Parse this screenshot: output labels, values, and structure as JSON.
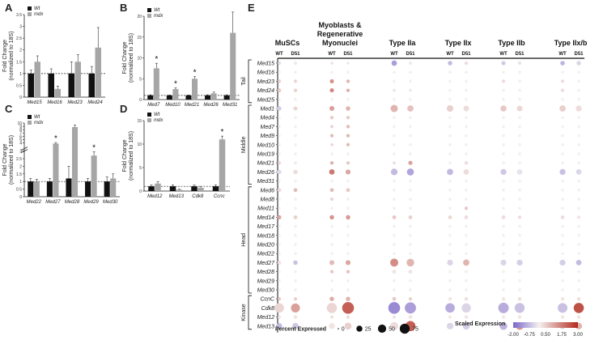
{
  "panel_letters": [
    "A",
    "B",
    "C",
    "D",
    "E"
  ],
  "bar_legend": {
    "wt": "Wt",
    "mdx": "mdx"
  },
  "colors": {
    "wt": "#111111",
    "mdx": "#a6a6a6",
    "neg": "#7b68c9",
    "mid": "#f4f0f0",
    "pos": "#b22a1c"
  },
  "chart_data": [
    {
      "panel": "A",
      "type": "bar",
      "ylabel": "Fold Change\n(normalized to 18S)",
      "ylim": [
        0,
        3.5
      ],
      "yticks": [
        0,
        0.5,
        1,
        1.5,
        2,
        2.5,
        3,
        3.5
      ],
      "categories": [
        "Med15",
        "Med16",
        "Med23",
        "Med24"
      ],
      "series": [
        {
          "name": "Wt",
          "values": [
            1.0,
            1.0,
            1.0,
            1.0
          ],
          "err": [
            0.15,
            0.2,
            0.5,
            0.3
          ]
        },
        {
          "name": "mdx",
          "values": [
            1.5,
            0.35,
            1.5,
            2.1
          ],
          "err": [
            0.25,
            0.12,
            0.3,
            0.85
          ]
        }
      ],
      "significant": []
    },
    {
      "panel": "B",
      "type": "bar",
      "ylabel": "Fold Change\n(normalized to 18S)",
      "ylim": [
        0,
        20
      ],
      "yticks": [
        0,
        5,
        10,
        15,
        20
      ],
      "categories": [
        "Med7",
        "Med10",
        "Med21",
        "Med26",
        "Med31"
      ],
      "series": [
        {
          "name": "Wt",
          "values": [
            1.0,
            1.0,
            1.0,
            1.0,
            1.0
          ],
          "err": [
            0.15,
            0.1,
            0.1,
            0.15,
            0.15
          ]
        },
        {
          "name": "mdx",
          "values": [
            7.5,
            2.5,
            5.0,
            1.5,
            16.0
          ],
          "err": [
            1.2,
            0.3,
            0.5,
            0.3,
            5.0
          ]
        }
      ],
      "significant": [
        0,
        1,
        2
      ]
    },
    {
      "panel": "C",
      "type": "bar",
      "ylabel": "Fold Change\n(normalized to 18S)",
      "ylim": [
        0,
        20
      ],
      "yticks": [
        0,
        0.5,
        1,
        1.5,
        2,
        2.5,
        3,
        4,
        5,
        6,
        7,
        8,
        9,
        10
      ],
      "y_break": true,
      "categories": [
        "Med22",
        "Med27",
        "Med28",
        "Med29",
        "Med30"
      ],
      "series": [
        {
          "name": "Wt",
          "values": [
            1.0,
            1.0,
            1.2,
            1.0,
            1.0
          ],
          "err": [
            0.2,
            0.2,
            0.8,
            0.2,
            0.3
          ]
        },
        {
          "name": "mdx",
          "values": [
            1.0,
            3.8,
            8.8,
            2.7,
            1.2
          ],
          "err": [
            0.15,
            0.3,
            0.6,
            0.25,
            0.3
          ]
        }
      ],
      "significant": [
        1,
        3
      ]
    },
    {
      "panel": "D",
      "type": "bar",
      "ylabel": "Fold Change\n(normalized to 18S)",
      "ylim": [
        0,
        15
      ],
      "yticks": [
        0,
        5,
        10,
        15
      ],
      "categories": [
        "Med12",
        "Med13",
        "Cdk8",
        "Ccnc"
      ],
      "series": [
        {
          "name": "Wt",
          "values": [
            1.0,
            1.0,
            1.0,
            1.0
          ],
          "err": [
            0.3,
            0.3,
            0.3,
            0.3
          ]
        },
        {
          "name": "mdx",
          "values": [
            1.6,
            0.3,
            0.7,
            11.0
          ],
          "err": [
            0.4,
            0.1,
            0.3,
            0.7
          ]
        }
      ],
      "significant": [
        3
      ]
    },
    {
      "panel": "E",
      "type": "scatter",
      "cell_types": [
        "MuSCs",
        "Myoblasts &\nRegenerative\nMyonuclei",
        "Type IIa",
        "Type IIx",
        "Type IIb",
        "Type IIx/b"
      ],
      "conditions": [
        "WT",
        "D51"
      ],
      "genes": [
        "Med15",
        "Med16",
        "Med23",
        "Med24",
        "Med25",
        "Med1",
        "Med4",
        "Med7",
        "Med9",
        "Med10",
        "Med19",
        "Med21",
        "Med26",
        "Med31",
        "Med6",
        "Med8",
        "Med11",
        "Med14",
        "Med17",
        "Med18",
        "Med20",
        "Med22",
        "Med27",
        "Med28",
        "Med29",
        "Med30",
        "CcnC",
        "Cdk8",
        "Med12",
        "Med13"
      ],
      "modules": [
        {
          "name": "Tail",
          "start": 0,
          "end": 4
        },
        {
          "name": "Middle",
          "start": 5,
          "end": 13
        },
        {
          "name": "Head",
          "start": 14,
          "end": 25
        },
        {
          "name": "Kinase",
          "start": 26,
          "end": 29
        }
      ],
      "percent": [
        [
          3,
          3,
          2,
          2,
          10,
          3,
          6,
          3,
          5,
          3,
          6,
          6
        ],
        [
          2,
          2,
          2,
          2,
          2,
          2,
          2,
          2,
          2,
          2,
          2,
          2
        ],
        [
          3,
          3,
          5,
          3,
          2,
          2,
          2,
          2,
          3,
          2,
          3,
          2
        ],
        [
          4,
          3,
          5,
          3,
          2,
          2,
          2,
          2,
          2,
          2,
          3,
          2
        ],
        [
          2,
          2,
          2,
          2,
          2,
          2,
          2,
          2,
          2,
          2,
          2,
          2
        ],
        [
          6,
          5,
          8,
          6,
          20,
          14,
          15,
          11,
          13,
          11,
          14,
          12
        ],
        [
          2,
          2,
          3,
          3,
          2,
          2,
          2,
          2,
          2,
          2,
          2,
          2
        ],
        [
          2,
          2,
          2,
          3,
          2,
          2,
          2,
          2,
          2,
          2,
          2,
          2
        ],
        [
          2,
          2,
          3,
          3,
          2,
          2,
          2,
          2,
          2,
          2,
          2,
          2
        ],
        [
          2,
          2,
          2,
          3,
          2,
          2,
          2,
          2,
          2,
          2,
          2,
          2
        ],
        [
          2,
          2,
          2,
          2,
          2,
          2,
          2,
          2,
          2,
          2,
          2,
          2
        ],
        [
          3,
          2,
          3,
          3,
          2,
          5,
          2,
          3,
          2,
          2,
          2,
          2
        ],
        [
          6,
          6,
          10,
          8,
          16,
          18,
          14,
          10,
          12,
          10,
          12,
          10
        ],
        [
          2,
          2,
          2,
          2,
          2,
          2,
          2,
          2,
          2,
          2,
          2,
          2
        ],
        [
          4,
          4,
          4,
          4,
          2,
          2,
          2,
          2,
          2,
          2,
          2,
          2
        ],
        [
          2,
          2,
          3,
          2,
          2,
          2,
          2,
          2,
          2,
          2,
          2,
          2
        ],
        [
          2,
          2,
          2,
          2,
          2,
          2,
          2,
          3,
          2,
          2,
          2,
          2
        ],
        [
          5,
          4,
          6,
          6,
          4,
          4,
          4,
          4,
          4,
          3,
          4,
          3
        ],
        [
          2,
          2,
          2,
          2,
          2,
          2,
          2,
          2,
          2,
          2,
          2,
          2
        ],
        [
          2,
          2,
          2,
          2,
          2,
          2,
          2,
          2,
          2,
          2,
          2,
          2
        ],
        [
          2,
          2,
          2,
          2,
          2,
          2,
          2,
          2,
          2,
          2,
          2,
          2
        ],
        [
          2,
          2,
          2,
          2,
          2,
          2,
          2,
          2,
          2,
          2,
          2,
          2
        ],
        [
          4,
          6,
          8,
          8,
          25,
          22,
          12,
          14,
          12,
          12,
          12,
          10
        ],
        [
          2,
          2,
          3,
          3,
          4,
          4,
          2,
          3,
          2,
          2,
          2,
          2
        ],
        [
          2,
          2,
          2,
          2,
          2,
          2,
          2,
          2,
          2,
          2,
          2,
          2
        ],
        [
          2,
          2,
          2,
          2,
          2,
          2,
          2,
          2,
          2,
          2,
          2,
          2
        ],
        [
          3,
          3,
          6,
          6,
          4,
          3,
          3,
          3,
          3,
          3,
          3,
          3
        ],
        [
          36,
          32,
          42,
          58,
          58,
          52,
          36,
          34,
          45,
          40,
          38,
          42
        ],
        [
          3,
          3,
          2,
          3,
          3,
          4,
          2,
          3,
          2,
          3,
          3,
          3
        ],
        [
          12,
          14,
          12,
          18,
          25,
          42,
          16,
          18,
          22,
          22,
          12,
          16
        ]
      ],
      "expression": [
        [
          -0.3,
          -0.1,
          0.2,
          0.1,
          -1.2,
          0.1,
          -0.8,
          0.3,
          -0.6,
          -0.2,
          -0.9,
          -0.4
        ],
        [
          0,
          0,
          0,
          0,
          0,
          0,
          0,
          0,
          0,
          0,
          0,
          0
        ],
        [
          0.5,
          0.4,
          1.4,
          0.9,
          0,
          0,
          0,
          0,
          0.3,
          0,
          0.3,
          0
        ],
        [
          0.6,
          0.5,
          1.6,
          1.0,
          0.2,
          0.1,
          0,
          0,
          0,
          0,
          0.3,
          0
        ],
        [
          0,
          0,
          0,
          0,
          0,
          0,
          0,
          0,
          0,
          0,
          0,
          0
        ],
        [
          -0.5,
          0.4,
          1.2,
          0.9,
          0.9,
          0.7,
          0.5,
          0.3,
          0.6,
          0.4,
          0.5,
          0.3
        ],
        [
          0,
          0,
          0.6,
          0.6,
          0,
          0,
          0,
          0,
          0,
          0,
          0,
          0
        ],
        [
          0,
          0,
          0.5,
          0.8,
          0,
          0,
          0,
          0,
          0,
          0,
          0,
          0
        ],
        [
          0,
          0,
          0.8,
          0.9,
          0,
          0,
          0,
          0,
          0,
          0,
          0,
          0
        ],
        [
          0,
          0,
          0.4,
          0.8,
          0,
          0,
          0,
          0,
          0,
          0,
          0,
          0
        ],
        [
          0,
          0,
          0,
          0,
          0,
          0,
          0,
          0,
          0,
          0,
          0,
          0
        ],
        [
          0.4,
          0.1,
          1.0,
          0.6,
          0.3,
          1.2,
          0,
          0.3,
          0,
          0,
          0,
          0
        ],
        [
          -0.3,
          0.3,
          1.8,
          1.1,
          -0.8,
          -1.1,
          -0.8,
          0.3,
          -0.6,
          -0.2,
          -0.7,
          -0.4
        ],
        [
          0,
          0,
          0,
          0,
          0,
          0,
          0,
          0,
          0,
          0,
          0,
          0
        ],
        [
          0.3,
          0.8,
          0.8,
          0.6,
          0,
          0,
          0,
          0,
          0,
          0,
          0,
          0
        ],
        [
          0,
          0,
          0.4,
          0,
          0,
          0,
          0,
          0,
          0,
          0,
          0,
          0
        ],
        [
          0,
          0,
          0,
          0,
          0,
          0,
          0,
          0.6,
          0,
          0,
          0,
          0
        ],
        [
          1.1,
          0.5,
          1.4,
          1.3,
          0.6,
          0.5,
          0.4,
          0.3,
          0.3,
          0.3,
          0.3,
          0.2
        ],
        [
          0,
          0,
          0,
          0,
          0,
          0,
          0,
          0,
          0,
          0,
          0,
          0
        ],
        [
          0,
          0,
          0,
          0,
          0,
          0,
          0,
          0,
          0,
          0,
          0,
          0
        ],
        [
          0,
          0,
          0,
          0,
          0,
          0,
          0,
          0,
          0,
          0,
          0,
          0
        ],
        [
          0,
          0,
          0,
          0,
          0,
          0,
          0,
          0,
          0,
          0,
          0,
          0
        ],
        [
          0.2,
          -0.7,
          0.8,
          1.1,
          1.5,
          0.9,
          -0.4,
          0.9,
          -0.4,
          -0.5,
          -0.5,
          -0.8
        ],
        [
          0,
          0,
          0.6,
          0.7,
          0.2,
          0.2,
          0,
          0,
          0,
          0,
          0,
          0
        ],
        [
          0,
          0,
          0,
          0,
          0,
          0,
          0,
          0,
          0,
          0,
          0,
          0
        ],
        [
          0,
          0,
          0,
          0,
          0,
          0,
          0,
          0,
          0,
          0,
          0,
          0
        ],
        [
          0.6,
          0.5,
          1.0,
          0.9,
          0.6,
          0.5,
          0.2,
          0.3,
          0.2,
          0.3,
          0.2,
          0.3
        ],
        [
          0.4,
          1.2,
          0.4,
          2.2,
          -1.5,
          -1.2,
          -1.0,
          -0.4,
          -1.0,
          -0.7,
          -0.7,
          2.4
        ],
        [
          0.2,
          0.2,
          0.3,
          0.3,
          0.2,
          0.2,
          0.2,
          0.2,
          0.2,
          0.2,
          0.2,
          0.2
        ],
        [
          -0.8,
          -0.6,
          0.2,
          0.5,
          0.3,
          2.2,
          -0.4,
          -0.5,
          -0.9,
          1.4,
          -0.5,
          0.9
        ]
      ],
      "size_legend": {
        "title": "Percent Expressed",
        "values": [
          0,
          25,
          50,
          75
        ],
        "labels": [
          "0",
          "25",
          "50",
          "75"
        ]
      },
      "color_legend": {
        "title": "Scaled Expression",
        "range": [
          -2.0,
          3.0
        ],
        "tick_labels": [
          "-2.00",
          "-0.75",
          "0.50",
          "1.75",
          "3.00"
        ]
      }
    }
  ]
}
